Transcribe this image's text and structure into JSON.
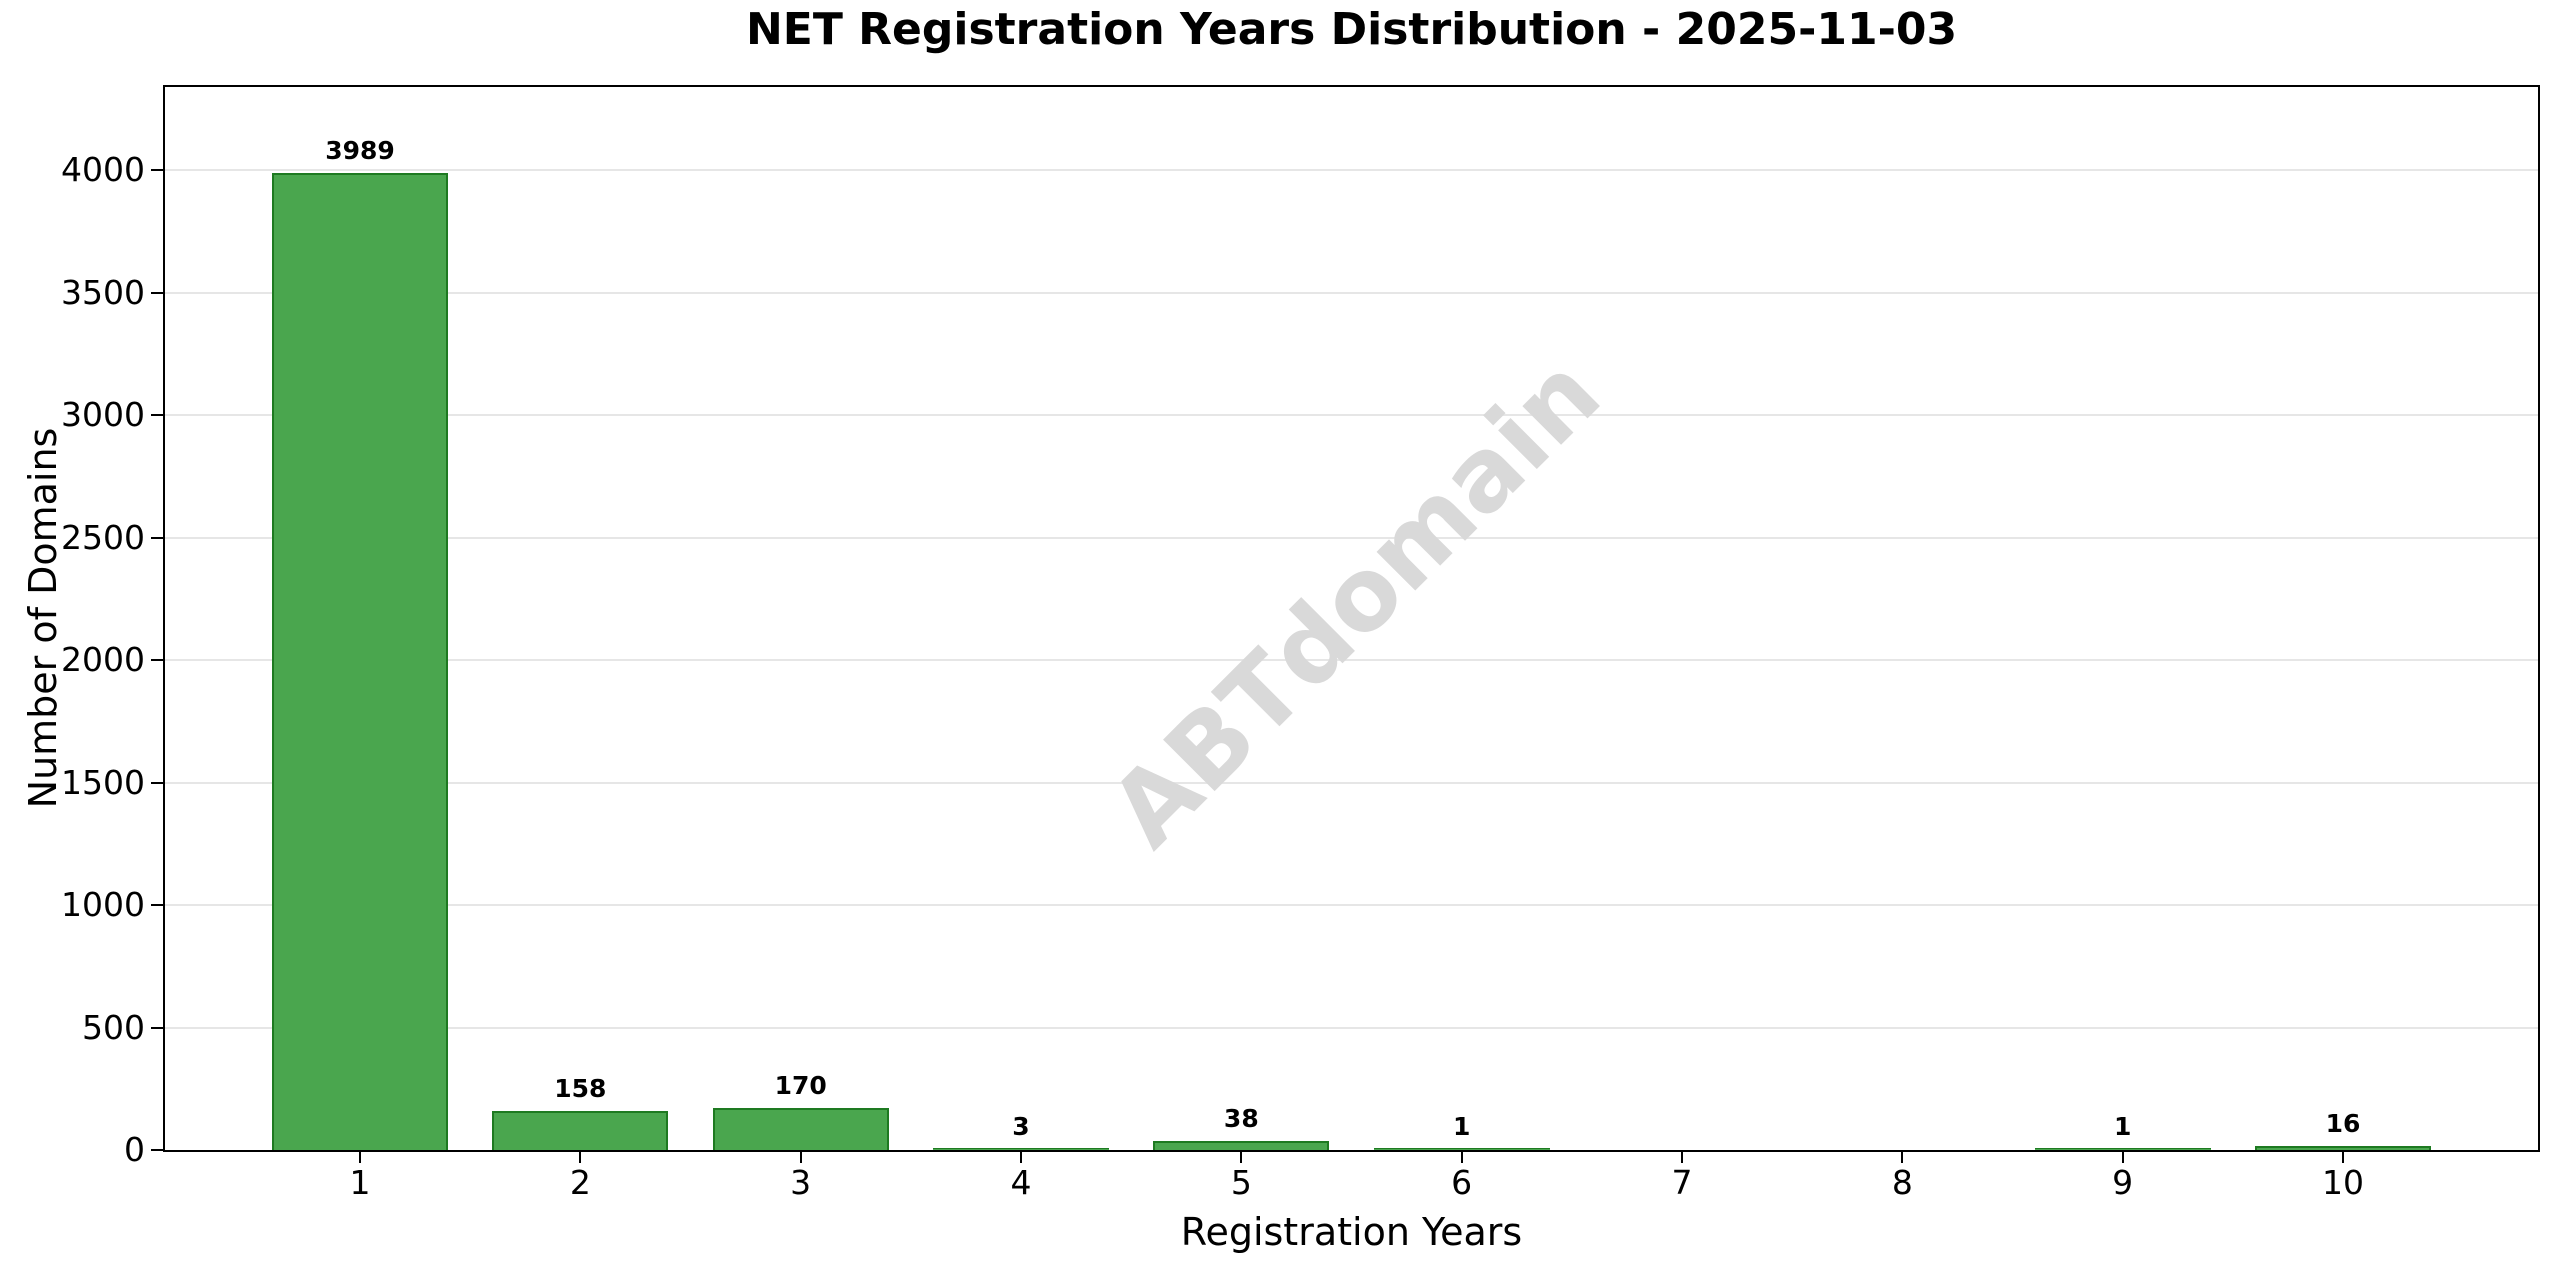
{
  "chart_data": {
    "type": "bar",
    "title": "NET Registration Years Distribution - 2025-11-03",
    "xlabel": "Registration Years",
    "ylabel": "Number of Domains",
    "categories": [
      "1",
      "2",
      "3",
      "4",
      "5",
      "6",
      "7",
      "8",
      "9",
      "10"
    ],
    "values": [
      3989,
      158,
      170,
      3,
      38,
      1,
      0,
      0,
      1,
      16
    ],
    "bar_labels": [
      "3989",
      "158",
      "170",
      "3",
      "38",
      "1",
      "",
      "",
      "1",
      "16"
    ],
    "ylim": [
      0,
      4340
    ],
    "yticks": [
      0,
      500,
      1000,
      1500,
      2000,
      2500,
      3000,
      3500,
      4000
    ],
    "grid": "horizontal",
    "legend": null,
    "watermark": "ABTdomain",
    "colors": {
      "bar_fill": "#4aa64e",
      "bar_edge": "#1e7a21",
      "grid": "#e6e6e6",
      "spine": "#000000",
      "text": "#000000",
      "watermark": "#d9d9d9"
    }
  }
}
